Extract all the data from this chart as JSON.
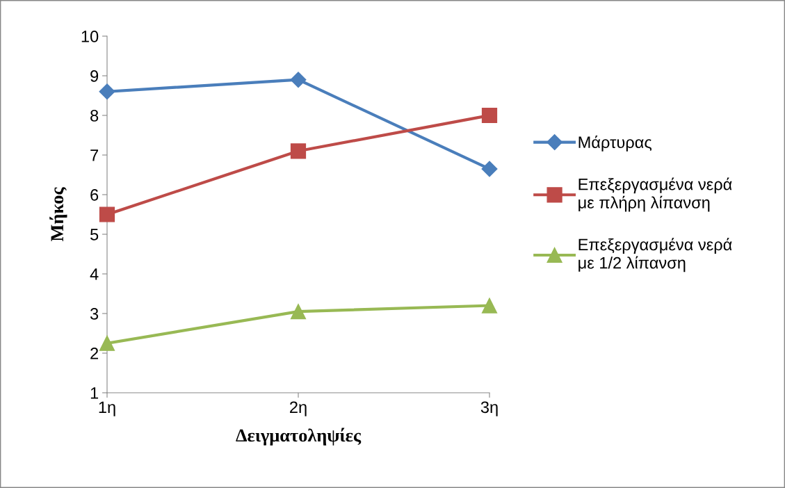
{
  "chart_data": {
    "type": "line",
    "xlabel": "Δειγματοληψίες",
    "ylabel": "Μήκος",
    "categories": [
      "1η",
      "2η",
      "3η"
    ],
    "series": [
      {
        "name": "Μάρτυρας",
        "color": "#4a7ebb",
        "marker": "diamond",
        "values": [
          8.6,
          8.9,
          6.65
        ]
      },
      {
        "name": "Επεξεργασμένα νερά\nμε πλήρη λίπανση",
        "color": "#be4b48",
        "marker": "square",
        "values": [
          5.5,
          7.1,
          8.0
        ]
      },
      {
        "name": "Επεξεργασμένα νερά\nμε 1/2 λίπανση",
        "color": "#98b954",
        "marker": "triangle",
        "values": [
          2.25,
          3.05,
          3.2
        ]
      }
    ],
    "ylim": [
      1,
      10
    ],
    "yticks": [
      1,
      2,
      3,
      4,
      5,
      6,
      7,
      8,
      9,
      10
    ],
    "grid": false,
    "legend": "right",
    "line_style": "solid"
  }
}
